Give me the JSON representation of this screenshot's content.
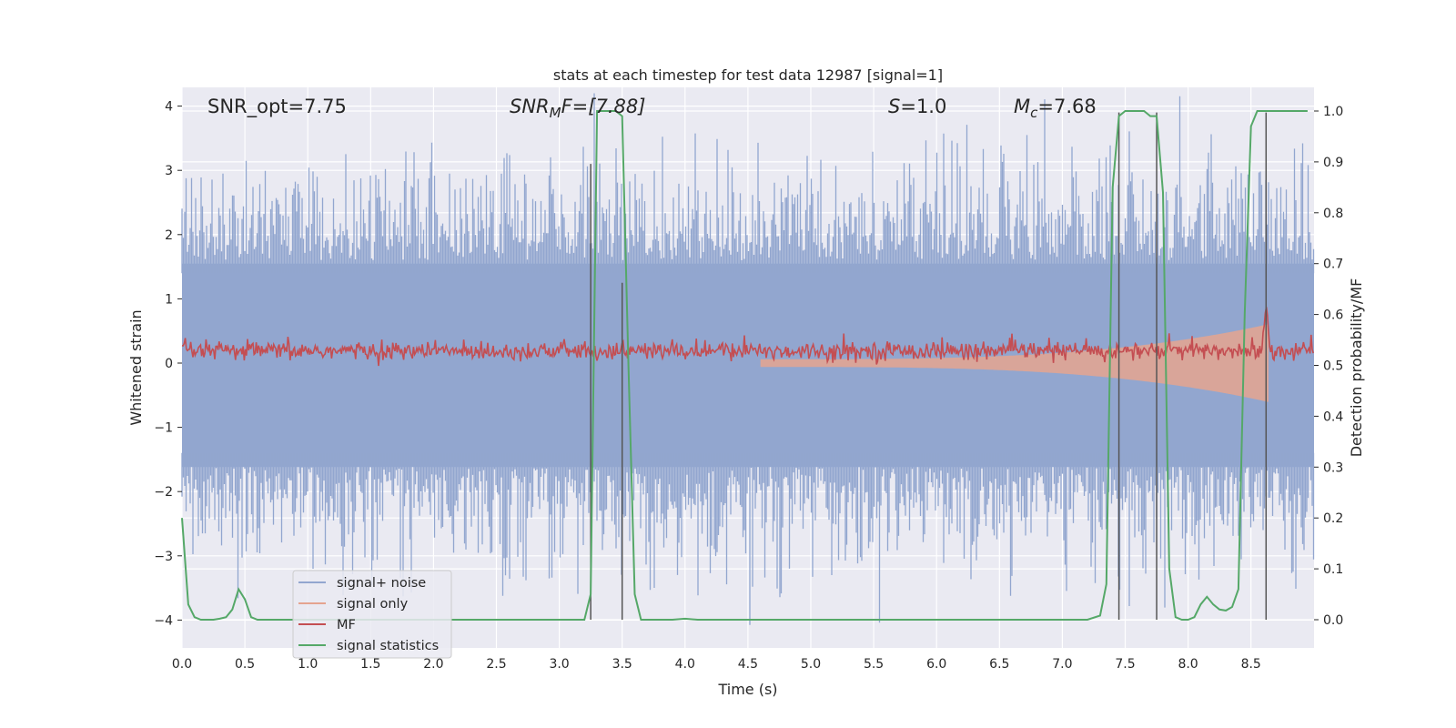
{
  "chart_data": {
    "type": "line",
    "title": "stats at each timestep for test data 12987 [signal=1]",
    "xlabel": "Time (s)",
    "ylabel": "Whitened strain",
    "y2label": "Detection probability/MF",
    "xlim": [
      0,
      9.0
    ],
    "ylim": [
      -4.4,
      4.3
    ],
    "y2lim": [
      -0.045,
      1.045
    ],
    "xticks": [
      "0.0",
      "0.5",
      "1.0",
      "1.5",
      "2.0",
      "2.5",
      "3.0",
      "3.5",
      "4.0",
      "4.5",
      "5.0",
      "5.5",
      "6.0",
      "6.5",
      "7.0",
      "7.5",
      "8.0",
      "8.5"
    ],
    "yticks": [
      "4",
      "3",
      "2",
      "1",
      "0",
      "−1",
      "−2",
      "−3",
      "−4"
    ],
    "y2ticks": [
      "1.0",
      "0.9",
      "0.8",
      "0.7",
      "0.6",
      "0.5",
      "0.4",
      "0.3",
      "0.2",
      "0.1",
      "0.0"
    ],
    "annotations": {
      "snr_opt": "SNR_opt=7.75",
      "snr_mf_main": "SNR",
      "snr_mf_sub": "M",
      "snr_mf_rest": "F=[7.88]",
      "s_main": "S",
      "s_rest": "=1.0",
      "mc_main": "M",
      "mc_sub": "c",
      "mc_rest": "=7.68"
    },
    "legend": {
      "position": "lower-left",
      "entries": [
        {
          "label": "signal+ noise",
          "color": "#92a6cf"
        },
        {
          "label": "signal only",
          "color": "#e5a48f"
        },
        {
          "label": "MF",
          "color": "#c44e52"
        },
        {
          "label": "signal statistics",
          "color": "#55a868"
        }
      ]
    },
    "colors": {
      "plot_bg": "#eaeaf2",
      "grid": "#ffffff",
      "noise": "#92a6cf",
      "signal": "#e5a48f",
      "mf": "#c44e52",
      "stats": "#55a868",
      "vline": "#555555"
    },
    "series": [
      {
        "name": "signal statistics",
        "axis": "right",
        "x": [
          0.0,
          0.05,
          0.1,
          0.15,
          0.2,
          0.25,
          0.3,
          0.35,
          0.4,
          0.45,
          0.5,
          0.55,
          0.6,
          0.65,
          0.7,
          0.75,
          0.8,
          1.0,
          1.5,
          2.0,
          2.5,
          3.0,
          3.2,
          3.25,
          3.3,
          3.35,
          3.4,
          3.45,
          3.5,
          3.55,
          3.6,
          3.65,
          3.7,
          3.8,
          3.9,
          4.0,
          4.1,
          4.2,
          4.5,
          5.0,
          5.5,
          6.0,
          6.5,
          7.0,
          7.2,
          7.3,
          7.35,
          7.4,
          7.45,
          7.5,
          7.55,
          7.6,
          7.65,
          7.7,
          7.75,
          7.8,
          7.85,
          7.9,
          7.95,
          8.0,
          8.05,
          8.1,
          8.15,
          8.2,
          8.25,
          8.3,
          8.35,
          8.4,
          8.45,
          8.5,
          8.55,
          8.6,
          8.65,
          8.7,
          8.75,
          8.8,
          8.85,
          8.9,
          8.95
        ],
        "values": [
          0.2,
          0.03,
          0.005,
          0.0,
          0.0,
          0.0,
          0.002,
          0.005,
          0.02,
          0.06,
          0.04,
          0.005,
          0.0,
          0.0,
          0.0,
          0.0,
          0.0,
          0.0,
          0.0,
          0.0,
          0.0,
          0.0,
          0.0,
          0.05,
          1.0,
          1.0,
          1.0,
          1.0,
          0.99,
          0.5,
          0.05,
          0.0,
          0.0,
          0.0,
          0.0,
          0.002,
          0.0,
          0.0,
          0.0,
          0.0,
          0.0,
          0.0,
          0.0,
          0.0,
          0.0,
          0.008,
          0.07,
          0.85,
          0.99,
          1.0,
          1.0,
          1.0,
          1.0,
          0.99,
          0.99,
          0.84,
          0.1,
          0.005,
          0.0,
          0.0,
          0.005,
          0.03,
          0.045,
          0.03,
          0.02,
          0.018,
          0.025,
          0.06,
          0.6,
          0.97,
          1.0,
          1.0,
          1.0,
          1.0,
          1.0,
          1.0,
          1.0,
          1.0,
          1.0
        ]
      },
      {
        "name": "detection markers",
        "axis": "left",
        "x": [
          3.25,
          3.5,
          7.45,
          7.75,
          8.62
        ],
        "values": [
          3.1,
          1.25,
          3.9,
          3.9,
          3.9
        ]
      }
    ]
  }
}
